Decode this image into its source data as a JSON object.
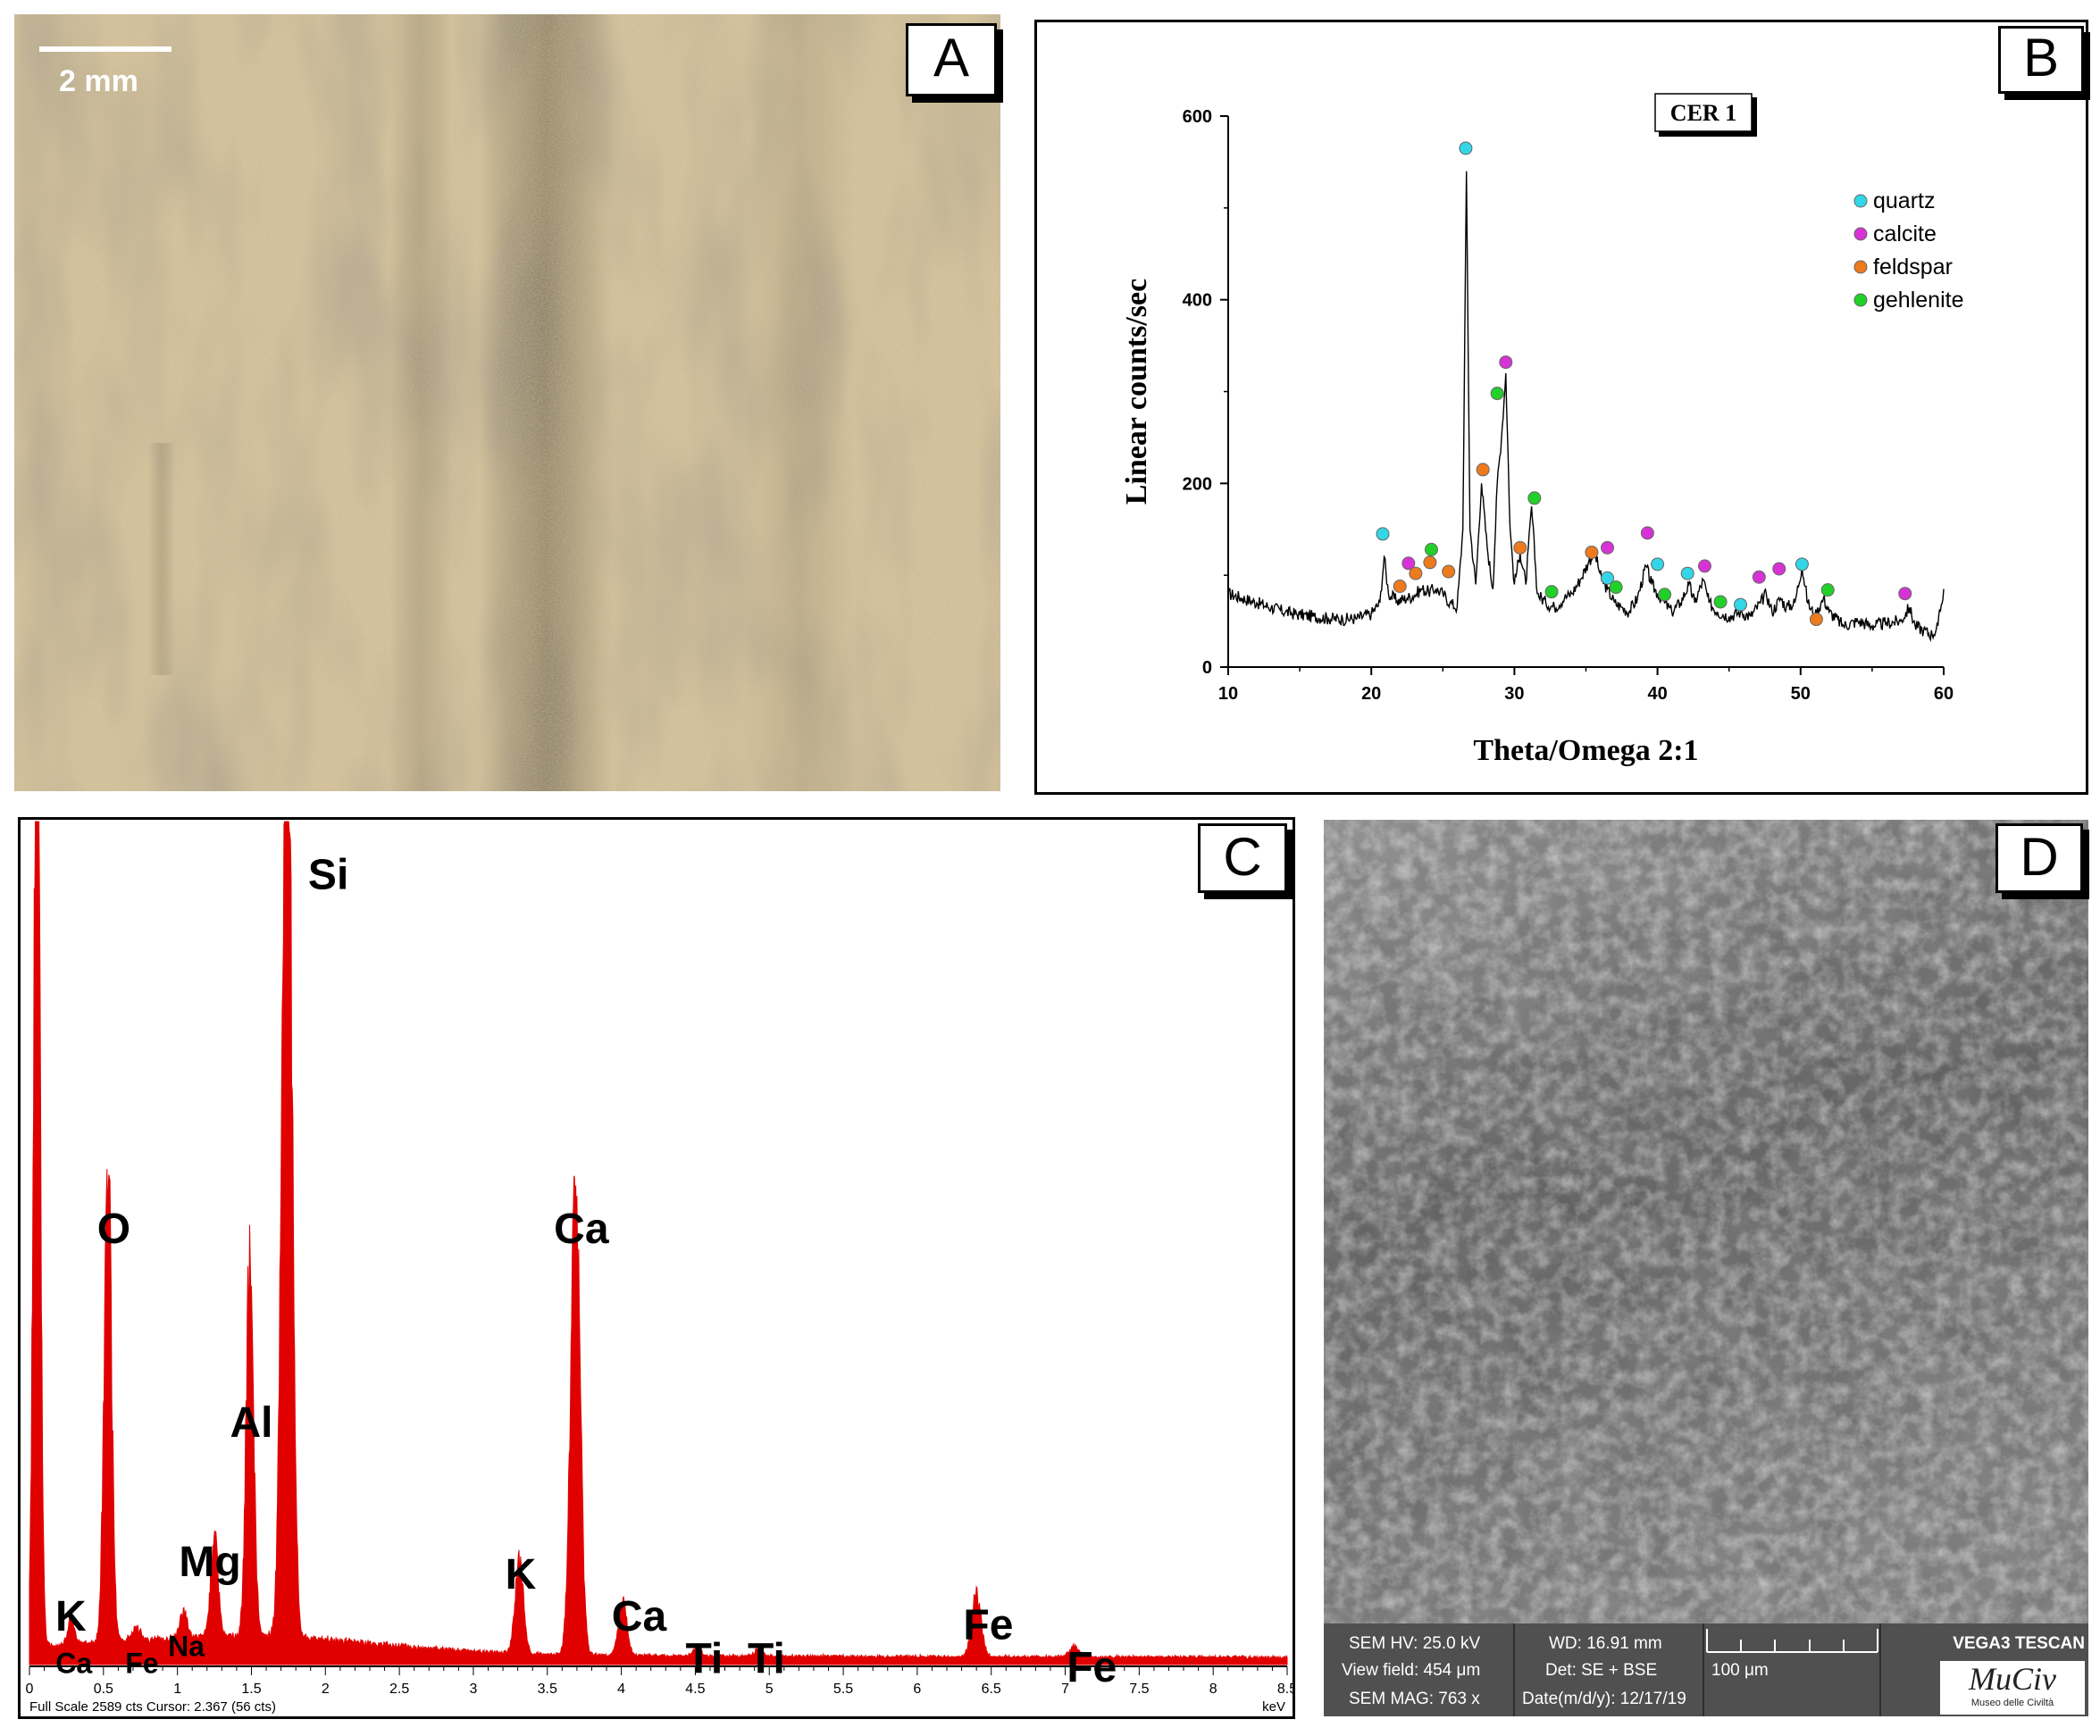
{
  "panels": {
    "a": {
      "letter": "A",
      "scale_label": "2 mm"
    },
    "b": {
      "letter": "B"
    },
    "c": {
      "letter": "C"
    },
    "d": {
      "letter": "D"
    }
  },
  "chart_data": [
    {
      "type": "line",
      "title": "CER 1",
      "xlabel": "Theta/Omega 2:1",
      "ylabel": "Linear counts/sec",
      "xlim": [
        10,
        60
      ],
      "ylim": [
        0,
        600
      ],
      "xticks": [
        10,
        20,
        30,
        40,
        50,
        60
      ],
      "yticks": [
        0,
        200,
        400,
        600
      ],
      "legend_position": "top-right",
      "legend": [
        {
          "name": "quartz",
          "color": "#33d6e6"
        },
        {
          "name": "calcite",
          "color": "#d633d6"
        },
        {
          "name": "feldspar",
          "color": "#ee7a1e"
        },
        {
          "name": "gehlenite",
          "color": "#22d02a"
        }
      ],
      "series": [
        {
          "values": [
            [
              10,
              80
            ],
            [
              11,
              75
            ],
            [
              12,
              70
            ],
            [
              13,
              65
            ],
            [
              14,
              60
            ],
            [
              15,
              57
            ],
            [
              16,
              55
            ],
            [
              17,
              53
            ],
            [
              18,
              52
            ],
            [
              19,
              53
            ],
            [
              20,
              58
            ],
            [
              20.6,
              70
            ],
            [
              20.9,
              120
            ],
            [
              21.2,
              80
            ],
            [
              21.8,
              72
            ],
            [
              22.5,
              75
            ],
            [
              23,
              78
            ],
            [
              23.5,
              85
            ],
            [
              24,
              82
            ],
            [
              24.5,
              85
            ],
            [
              25,
              80
            ],
            [
              25.5,
              70
            ],
            [
              26,
              65
            ],
            [
              26.4,
              150
            ],
            [
              26.65,
              540
            ],
            [
              26.9,
              150
            ],
            [
              27.3,
              90
            ],
            [
              27.7,
              200
            ],
            [
              28.1,
              130
            ],
            [
              28.5,
              85
            ],
            [
              28.8,
              200
            ],
            [
              29.1,
              250
            ],
            [
              29.4,
              320
            ],
            [
              29.7,
              150
            ],
            [
              30,
              90
            ],
            [
              30.4,
              125
            ],
            [
              30.8,
              90
            ],
            [
              31.2,
              175
            ],
            [
              31.6,
              80
            ],
            [
              32.2,
              70
            ],
            [
              32.8,
              65
            ],
            [
              33.5,
              75
            ],
            [
              34,
              80
            ],
            [
              34.6,
              95
            ],
            [
              35.2,
              115
            ],
            [
              35.6,
              125
            ],
            [
              36.1,
              95
            ],
            [
              36.5,
              85
            ],
            [
              37,
              70
            ],
            [
              37.5,
              65
            ],
            [
              38,
              60
            ],
            [
              38.6,
              75
            ],
            [
              39.2,
              110
            ],
            [
              39.6,
              90
            ],
            [
              40,
              80
            ],
            [
              40.5,
              70
            ],
            [
              41,
              60
            ],
            [
              41.6,
              70
            ],
            [
              42.2,
              90
            ],
            [
              42.6,
              70
            ],
            [
              43.2,
              95
            ],
            [
              43.6,
              70
            ],
            [
              44.2,
              60
            ],
            [
              45,
              55
            ],
            [
              45.8,
              60
            ],
            [
              46.5,
              55
            ],
            [
              47.2,
              70
            ],
            [
              47.6,
              80
            ],
            [
              48,
              60
            ],
            [
              48.6,
              75
            ],
            [
              49,
              65
            ],
            [
              49.6,
              70
            ],
            [
              50.1,
              110
            ],
            [
              50.5,
              70
            ],
            [
              51,
              55
            ],
            [
              51.6,
              75
            ],
            [
              52,
              60
            ],
            [
              53,
              45
            ],
            [
              54,
              50
            ],
            [
              55,
              45
            ],
            [
              56,
              48
            ],
            [
              57,
              50
            ],
            [
              57.6,
              65
            ],
            [
              58,
              45
            ],
            [
              58.6,
              40
            ],
            [
              59.2,
              35
            ],
            [
              59.6,
              45
            ],
            [
              60,
              85
            ]
          ]
        }
      ],
      "markers": [
        {
          "phase": "quartz",
          "x": 20.8,
          "y": 145
        },
        {
          "phase": "quartz",
          "x": 26.6,
          "y": 565
        },
        {
          "phase": "quartz",
          "x": 36.5,
          "y": 97
        },
        {
          "phase": "quartz",
          "x": 40,
          "y": 112
        },
        {
          "phase": "quartz",
          "x": 42.1,
          "y": 102
        },
        {
          "phase": "quartz",
          "x": 45.8,
          "y": 68
        },
        {
          "phase": "quartz",
          "x": 50.1,
          "y": 112
        },
        {
          "phase": "calcite",
          "x": 22.6,
          "y": 113
        },
        {
          "phase": "calcite",
          "x": 29.4,
          "y": 332
        },
        {
          "phase": "calcite",
          "x": 36.5,
          "y": 130
        },
        {
          "phase": "calcite",
          "x": 39.3,
          "y": 146
        },
        {
          "phase": "calcite",
          "x": 43.3,
          "y": 110
        },
        {
          "phase": "calcite",
          "x": 47.1,
          "y": 98
        },
        {
          "phase": "calcite",
          "x": 48.5,
          "y": 107
        },
        {
          "phase": "calcite",
          "x": 57.3,
          "y": 80
        },
        {
          "phase": "feldspar",
          "x": 22,
          "y": 88
        },
        {
          "phase": "feldspar",
          "x": 23.1,
          "y": 102
        },
        {
          "phase": "feldspar",
          "x": 24.1,
          "y": 114
        },
        {
          "phase": "feldspar",
          "x": 25.4,
          "y": 104
        },
        {
          "phase": "feldspar",
          "x": 27.8,
          "y": 215
        },
        {
          "phase": "feldspar",
          "x": 30.4,
          "y": 130
        },
        {
          "phase": "feldspar",
          "x": 35.4,
          "y": 125
        },
        {
          "phase": "feldspar",
          "x": 51.1,
          "y": 52
        },
        {
          "phase": "gehlenite",
          "x": 24.2,
          "y": 128
        },
        {
          "phase": "gehlenite",
          "x": 28.8,
          "y": 298
        },
        {
          "phase": "gehlenite",
          "x": 31.4,
          "y": 184
        },
        {
          "phase": "gehlenite",
          "x": 32.6,
          "y": 82
        },
        {
          "phase": "gehlenite",
          "x": 37.1,
          "y": 87
        },
        {
          "phase": "gehlenite",
          "x": 40.5,
          "y": 79
        },
        {
          "phase": "gehlenite",
          "x": 44.4,
          "y": 71
        },
        {
          "phase": "gehlenite",
          "x": 51.9,
          "y": 84
        }
      ]
    },
    {
      "type": "area",
      "xlabel": "keV",
      "xlim": [
        0,
        8.5
      ],
      "xticks": [
        "0",
        "0.5",
        "1",
        "1.5",
        "2",
        "2.5",
        "3",
        "3.5",
        "4",
        "4.5",
        "5",
        "5.5",
        "6",
        "6.5",
        "7",
        "7.5",
        "8",
        "8.5"
      ],
      "footer": "Full Scale 2589 cts Cursor: 2.367  (56 cts)",
      "color": "#e00000",
      "peaks": [
        {
          "x": 0.05,
          "h": 1.2,
          "w": 0.03
        },
        {
          "x": 0.28,
          "h": 0.03,
          "w": 0.03
        },
        {
          "x": 0.53,
          "h": 0.57,
          "w": 0.035
        },
        {
          "x": 0.72,
          "h": 0.015,
          "w": 0.04
        },
        {
          "x": 1.04,
          "h": 0.03,
          "w": 0.035
        },
        {
          "x": 1.25,
          "h": 0.12,
          "w": 0.035
        },
        {
          "x": 1.49,
          "h": 0.46,
          "w": 0.035
        },
        {
          "x": 1.74,
          "h": 1.2,
          "w": 0.045
        },
        {
          "x": 3.31,
          "h": 0.11,
          "w": 0.04
        },
        {
          "x": 3.69,
          "h": 0.55,
          "w": 0.045
        },
        {
          "x": 4.01,
          "h": 0.065,
          "w": 0.04
        },
        {
          "x": 4.51,
          "h": 0.01,
          "w": 0.04
        },
        {
          "x": 4.93,
          "h": 0.008,
          "w": 0.04
        },
        {
          "x": 6.4,
          "h": 0.075,
          "w": 0.045
        },
        {
          "x": 7.06,
          "h": 0.012,
          "w": 0.045
        }
      ],
      "peak_labels": [
        {
          "text": "O",
          "x": 0.57,
          "y": 0.5
        },
        {
          "text": "K",
          "x": 0.28,
          "y": 0.96
        },
        {
          "text": "Ca",
          "x": 0.3,
          "y": 1.01
        },
        {
          "text": "Fe",
          "x": 0.76,
          "y": 1.01
        },
        {
          "text": "Na",
          "x": 1.06,
          "y": 0.99
        },
        {
          "text": "Mg",
          "x": 1.22,
          "y": 0.895
        },
        {
          "text": "Al",
          "x": 1.5,
          "y": 0.73
        },
        {
          "text": "Si",
          "x": 2.02,
          "y": 0.08
        },
        {
          "text": "K",
          "x": 3.32,
          "y": 0.91
        },
        {
          "text": "Ca",
          "x": 3.73,
          "y": 0.5
        },
        {
          "text": "Ca",
          "x": 4.12,
          "y": 0.96
        },
        {
          "text": "Ti",
          "x": 4.56,
          "y": 1.01
        },
        {
          "text": "Ti",
          "x": 4.98,
          "y": 1.01
        },
        {
          "text": "Fe",
          "x": 6.48,
          "y": 0.97
        },
        {
          "text": "Fe",
          "x": 7.18,
          "y": 1.02
        }
      ]
    }
  ],
  "sem": {
    "hv": "SEM HV: 25.0 kV",
    "wd": "WD: 16.91 mm",
    "view_field": "View field: 454 μm",
    "det": "Det: SE + BSE",
    "scale": "100 μm",
    "mag": "SEM MAG: 763 x",
    "date": "Date(m/d/y): 12/17/19",
    "vendor": "VEGA3 TESCAN",
    "logo_text": "MuCiv",
    "logo_sub": "Museo delle Civiltà"
  }
}
